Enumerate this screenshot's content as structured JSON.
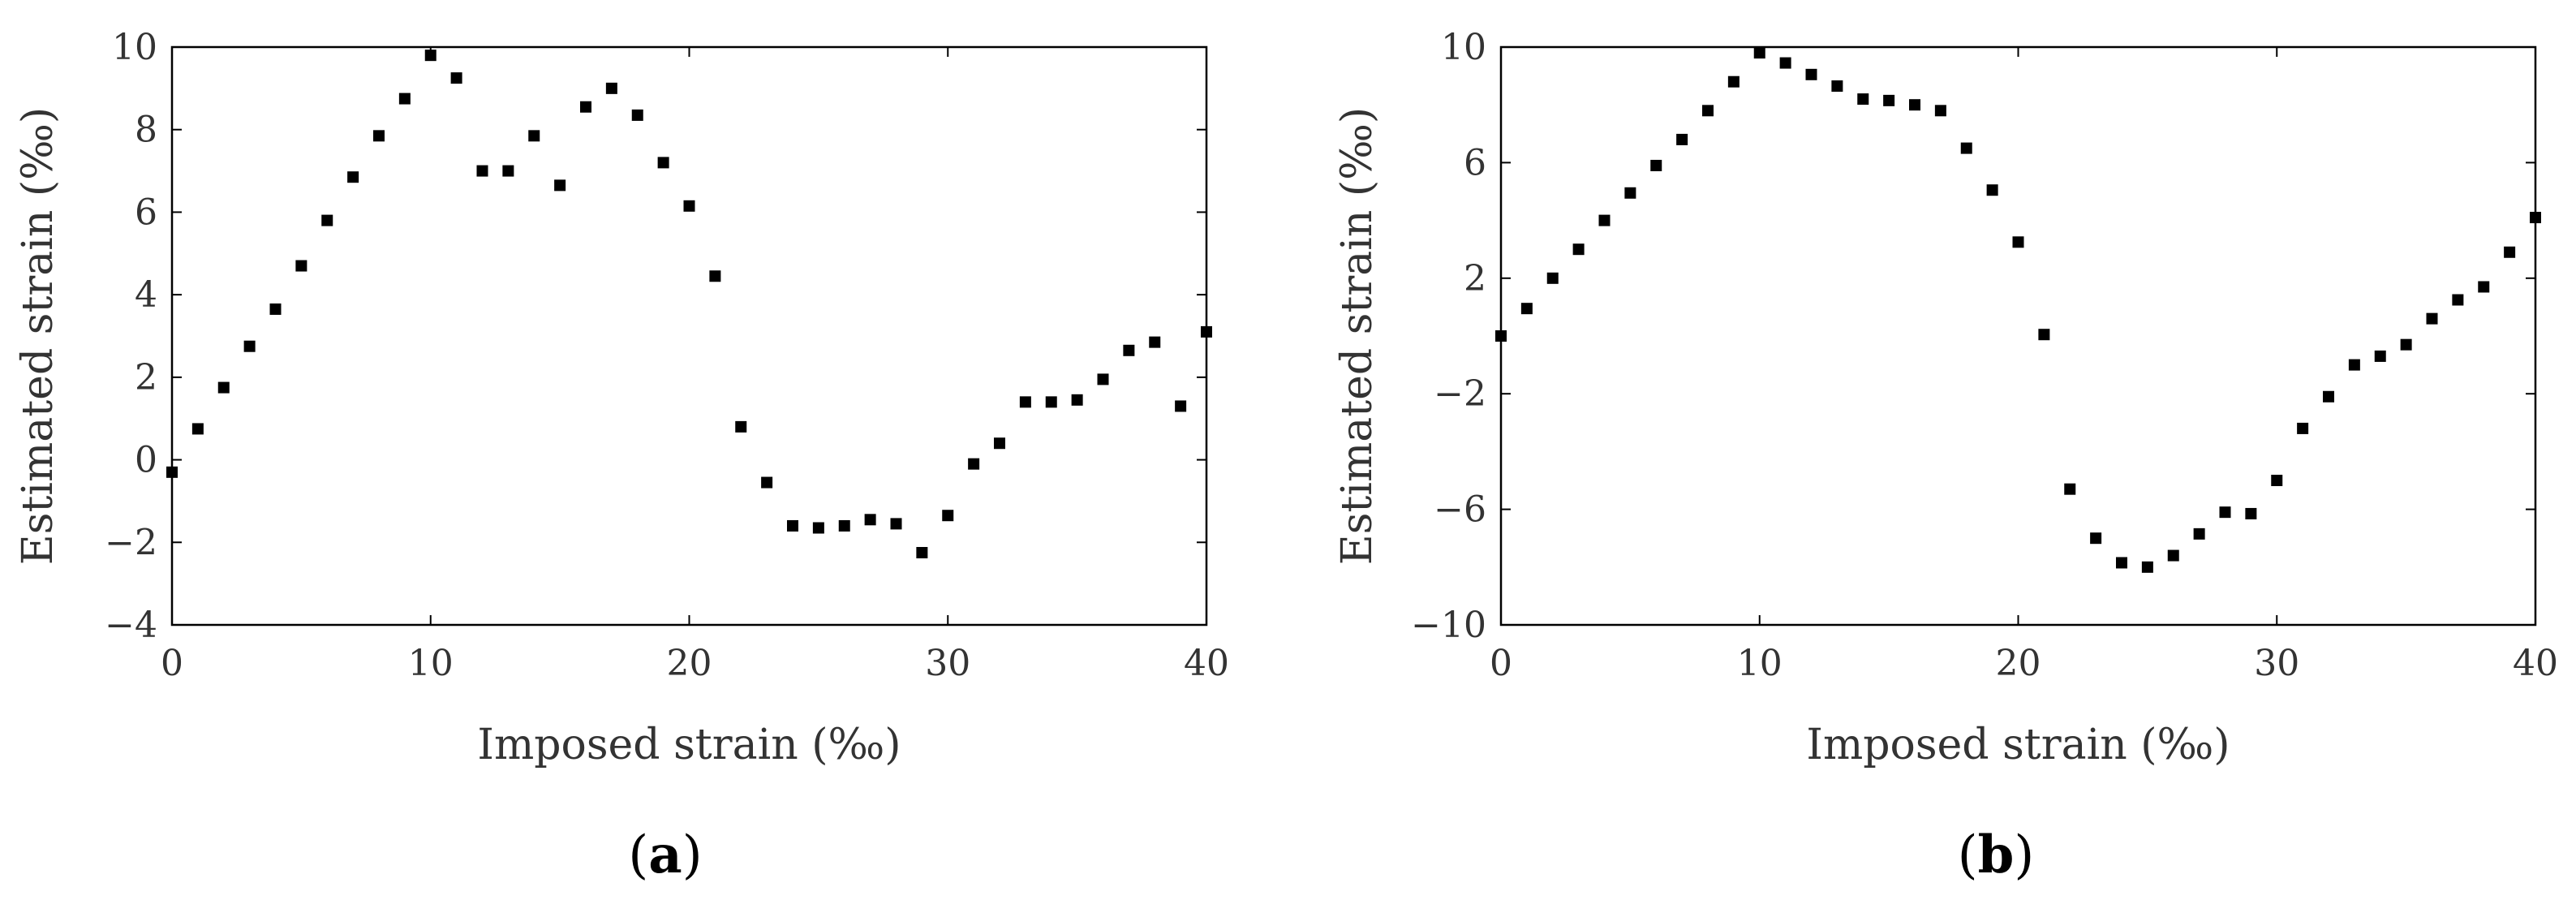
{
  "chart_data": [
    {
      "type": "scatter",
      "panel_label": "a",
      "xlabel": "Imposed strain (‰)",
      "ylabel": "Estimated strain (‰)",
      "xlim": [
        0,
        40
      ],
      "ylim": [
        -4,
        10
      ],
      "xticks": [
        0,
        10,
        20,
        30,
        40
      ],
      "yticks": [
        -4,
        -2,
        0,
        2,
        4,
        6,
        8,
        10
      ],
      "xtick_labels": [
        "0",
        "10",
        "20",
        "30",
        "40"
      ],
      "ytick_labels": [
        "−4",
        "−2",
        "0",
        "2",
        "4",
        "6",
        "8",
        "10"
      ],
      "grid": false,
      "marker_color": "#000000",
      "x": [
        0,
        1,
        2,
        3,
        4,
        5,
        6,
        7,
        8,
        9,
        10,
        11,
        12,
        13,
        14,
        15,
        16,
        17,
        18,
        19,
        20,
        21,
        22,
        23,
        24,
        25,
        26,
        27,
        28,
        29,
        30,
        31,
        32,
        33,
        34,
        35,
        36,
        37,
        38,
        39,
        40
      ],
      "y": [
        -0.3,
        0.75,
        1.75,
        2.75,
        3.65,
        4.7,
        5.8,
        6.85,
        7.85,
        8.75,
        9.8,
        9.25,
        7.0,
        7.0,
        7.85,
        6.65,
        8.55,
        9.0,
        8.35,
        7.2,
        6.15,
        4.45,
        0.8,
        -0.55,
        -1.6,
        -1.65,
        -1.6,
        -1.45,
        -1.55,
        -2.25,
        -1.35,
        -0.1,
        0.4,
        1.4,
        1.4,
        1.45,
        1.95,
        2.65,
        2.85,
        1.3,
        3.1
      ]
    },
    {
      "type": "scatter",
      "panel_label": "b",
      "xlabel": "Imposed strain (‰)",
      "ylabel": "Estimated strain (‰)",
      "xlim": [
        0,
        40
      ],
      "ylim": [
        -10,
        10
      ],
      "xticks": [
        0,
        10,
        20,
        30,
        40
      ],
      "yticks": [
        -10,
        -6,
        -2,
        2,
        6,
        10
      ],
      "xtick_labels": [
        "0",
        "10",
        "20",
        "30",
        "40"
      ],
      "ytick_labels": [
        "−10",
        "−6",
        "−2",
        "2",
        "6",
        "10"
      ],
      "grid": false,
      "marker_color": "#000000",
      "x": [
        0,
        1,
        2,
        3,
        4,
        5,
        6,
        7,
        8,
        9,
        10,
        11,
        12,
        13,
        14,
        15,
        16,
        17,
        18,
        19,
        20,
        21,
        22,
        23,
        24,
        25,
        26,
        27,
        28,
        29,
        30,
        31,
        32,
        33,
        34,
        35,
        36,
        37,
        38,
        39,
        40
      ],
      "y": [
        0.0,
        0.95,
        2.0,
        3.0,
        4.0,
        4.95,
        5.9,
        6.8,
        7.8,
        8.8,
        9.8,
        9.45,
        9.05,
        8.65,
        8.2,
        8.15,
        8.0,
        7.8,
        6.5,
        5.05,
        3.25,
        0.05,
        -5.3,
        -7.0,
        -7.85,
        -8.0,
        -7.6,
        -6.85,
        -6.1,
        -6.15,
        -5.0,
        -3.2,
        -2.1,
        -1.0,
        -0.7,
        -0.3,
        0.6,
        1.25,
        1.7,
        2.9,
        4.1
      ]
    }
  ]
}
